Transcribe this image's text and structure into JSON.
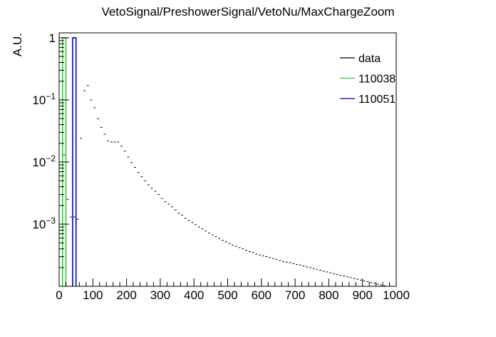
{
  "chart_data": {
    "type": "line",
    "title": "VetoSignal/PreshowerSignal/VetoNu/MaxChargeZoom",
    "xlabel": "",
    "ylabel": "A.U.",
    "x_scale": "linear",
    "y_scale": "log",
    "xlim": [
      0,
      1000
    ],
    "ylim": [
      0.0001,
      1.2
    ],
    "grid": false,
    "legend_position": "top-right",
    "x_ticks": [
      "0",
      "100",
      "200",
      "300",
      "400",
      "500",
      "600",
      "700",
      "800",
      "900",
      "1000"
    ],
    "y_ticks": [
      {
        "value": 0.001,
        "base": "10",
        "exp": "−3"
      },
      {
        "value": 0.01,
        "base": "10",
        "exp": "−2"
      },
      {
        "value": 0.1,
        "base": "10",
        "exp": "−1"
      },
      {
        "value": 1,
        "base": "1",
        "exp": ""
      }
    ],
    "series": [
      {
        "name": "data",
        "color": "#000000",
        "style": "marker",
        "bin_width": 10,
        "x": [
          5,
          15,
          25,
          35,
          45,
          55,
          65,
          75,
          85,
          95,
          105,
          115,
          125,
          135,
          145,
          155,
          165,
          175,
          185,
          195,
          205,
          215,
          225,
          235,
          245,
          255,
          265,
          275,
          285,
          295,
          305,
          315,
          325,
          335,
          345,
          355,
          365,
          375,
          385,
          395,
          405,
          415,
          425,
          435,
          445,
          455,
          465,
          475,
          485,
          495,
          505,
          515,
          525,
          535,
          545,
          555,
          565,
          575,
          585,
          595,
          605,
          615,
          625,
          635,
          645,
          655,
          665,
          675,
          685,
          695,
          705,
          715,
          725,
          735,
          745,
          755,
          765,
          775,
          785,
          795,
          805,
          815,
          825,
          835,
          845,
          855,
          865,
          875,
          885,
          895,
          905,
          915,
          925,
          935,
          945,
          955,
          965,
          975,
          985,
          995
        ],
        "y": [
          0.3,
          0.013,
          0.0025,
          0.0013,
          0.0013,
          0.0012,
          0.024,
          0.14,
          0.17,
          0.1,
          0.075,
          0.05,
          0.036,
          0.028,
          0.022,
          0.021,
          0.021,
          0.021,
          0.018,
          0.015,
          0.012,
          0.0098,
          0.0082,
          0.0068,
          0.0058,
          0.005,
          0.0043,
          0.0038,
          0.0034,
          0.003,
          0.0026,
          0.0023,
          0.0021,
          0.0019,
          0.0017,
          0.0015,
          0.0014,
          0.00125,
          0.00115,
          0.00106,
          0.00098,
          0.0009,
          0.00084,
          0.00078,
          0.00072,
          0.00067,
          0.00063,
          0.00059,
          0.00055,
          0.00052,
          0.00049,
          0.00046,
          0.00044,
          0.00042,
          0.0004,
          0.00038,
          0.00036,
          0.00035,
          0.00033,
          0.00032,
          0.00031,
          0.0003,
          0.00029,
          0.00028,
          0.00027,
          0.00026,
          0.00025,
          0.000245,
          0.00024,
          0.000232,
          0.000225,
          0.00022,
          0.000212,
          0.000205,
          0.0002,
          0.000193,
          0.000187,
          0.000181,
          0.000175,
          0.00017,
          0.000165,
          0.00016,
          0.000155,
          0.00015,
          0.000146,
          0.000142,
          0.000138,
          0.000134,
          0.00013,
          0.000126,
          0.000122,
          0.000119,
          0.000115,
          0.000112,
          0.000108,
          0.000105,
          0.000102,
          9.9e-05,
          9.6e-05,
          9.3e-05
        ]
      },
      {
        "name": "110038",
        "color": "#33cc33",
        "style": "histogram",
        "bins": [
          [
            10,
            20
          ]
        ],
        "values": [
          1.0
        ]
      },
      {
        "name": "110051",
        "color": "#0000cc",
        "style": "histogram",
        "bins": [
          [
            40,
            50
          ]
        ],
        "values": [
          1.0
        ]
      }
    ]
  }
}
